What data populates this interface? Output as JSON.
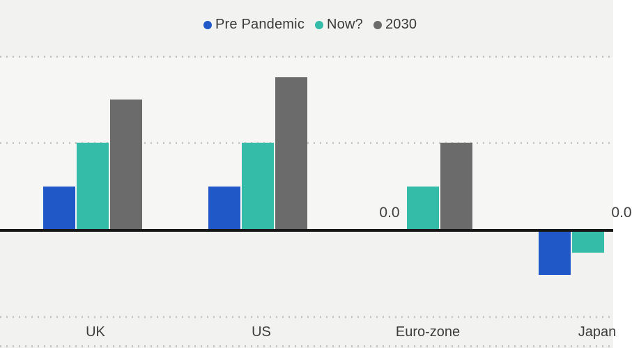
{
  "legend": [
    {
      "label": "Pre Pandemic",
      "color": "#2158C7"
    },
    {
      "label": "Now?",
      "color": "#35BCA9"
    },
    {
      "label": "2030",
      "color": "#6B6B6B"
    }
  ],
  "chart_data": {
    "type": "bar",
    "title": "",
    "categories": [
      "UK",
      "US",
      "Euro-zone",
      "Japan"
    ],
    "series": [
      {
        "name": "Pre Pandemic",
        "color": "#2158C7",
        "values": [
          0.5,
          0.5,
          0.0,
          -0.5
        ]
      },
      {
        "name": "Now?",
        "color": "#35BCA9",
        "values": [
          1.0,
          1.0,
          0.5,
          -0.25
        ]
      },
      {
        "name": "2030",
        "color": "#6B6B6B",
        "values": [
          1.5,
          1.75,
          1.0,
          0.0
        ]
      }
    ],
    "data_labels": [
      {
        "category_index": 2,
        "series_index": 0,
        "text": "0.0"
      },
      {
        "category_index": 3,
        "series_index": 2,
        "text": "0.0"
      }
    ],
    "xlabel": "",
    "ylabel": "",
    "ylim": [
      -1.4,
      2.0
    ],
    "gridline_values": [
      2.0,
      1.0,
      -1.0
    ],
    "grid": "dotted horizontal",
    "legend_position": "top",
    "zero_axis": true
  },
  "colors": {
    "background": "#F2F2F0",
    "plot_background": "#F6F6F4",
    "gridline": "#C6C5C3",
    "zero_axis": "#161616",
    "category_text": "#3C3C3C",
    "legend_text": "#3A3A3A",
    "data_label_text": "#3F3F3F"
  }
}
